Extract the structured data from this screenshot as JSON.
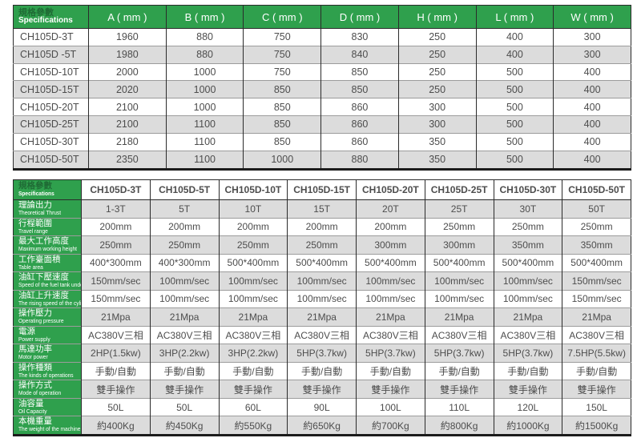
{
  "colors": {
    "header_green": "#2fa04d",
    "stripe_gray": "#dcdcdc",
    "border_dark": "#2b2b2b",
    "border_light": "#9c9c9c",
    "text_gray": "#4d4d4d",
    "header_cn_dark_green": "#1f6b35",
    "header_text_white": "#ffffff"
  },
  "table1": {
    "header": {
      "label_cn": "規格參數",
      "label_en": "Specifications",
      "columns": [
        "A ( mm )",
        "B ( mm )",
        "C ( mm )",
        "D ( mm )",
        "H ( mm )",
        "L ( mm )",
        "W ( mm )"
      ]
    },
    "rows": [
      {
        "model": "CH105D-3T",
        "values": [
          "1960",
          "880",
          "750",
          "830",
          "250",
          "400",
          "300"
        ]
      },
      {
        "model": "CH105D -5T",
        "values": [
          "1980",
          "880",
          "750",
          "840",
          "250",
          "400",
          "300"
        ]
      },
      {
        "model": "CH105D-10T",
        "values": [
          "2000",
          "1000",
          "750",
          "850",
          "250",
          "500",
          "400"
        ]
      },
      {
        "model": "CH105D-15T",
        "values": [
          "2020",
          "1000",
          "850",
          "850",
          "250",
          "500",
          "400"
        ]
      },
      {
        "model": "CH105D-20T",
        "values": [
          "2100",
          "1000",
          "850",
          "860",
          "300",
          "500",
          "400"
        ]
      },
      {
        "model": "CH105D-25T",
        "values": [
          "2100",
          "1100",
          "850",
          "860",
          "300",
          "500",
          "400"
        ]
      },
      {
        "model": "CH105D-30T",
        "values": [
          "2180",
          "1100",
          "850",
          "860",
          "350",
          "500",
          "400"
        ]
      },
      {
        "model": "CH105D-50T",
        "values": [
          "2350",
          "1100",
          "1000",
          "880",
          "350",
          "500",
          "400"
        ]
      }
    ]
  },
  "table2": {
    "header": {
      "label_cn": "規格參數",
      "label_en": "Specifications",
      "columns": [
        "CH105D-3T",
        "CH105D-5T",
        "CH105D-10T",
        "CH105D-15T",
        "CH105D-20T",
        "CH105D-25T",
        "CH105D-30T",
        "CH105D-50T"
      ]
    },
    "rows": [
      {
        "label_cn": "理論出力",
        "label_en": "Theoretical Thrust",
        "values": [
          "1-3T",
          "5T",
          "10T",
          "15T",
          "20T",
          "25T",
          "30T",
          "50T"
        ]
      },
      {
        "label_cn": "行程範圍",
        "label_en": "Travel range",
        "values": [
          "200mm",
          "200mm",
          "200mm",
          "200mm",
          "200mm",
          "250mm",
          "250mm",
          "250mm"
        ]
      },
      {
        "label_cn": "最大工作高度",
        "label_en": "Maximum working height",
        "values": [
          "250mm",
          "250mm",
          "250mm",
          "250mm",
          "300mm",
          "300mm",
          "350mm",
          "350mm"
        ]
      },
      {
        "label_cn": "工作臺面積",
        "label_en": "Table area",
        "values": [
          "400*300mm",
          "400*300mm",
          "500*400mm",
          "500*400mm",
          "500*400mm",
          "500*400mm",
          "500*400mm",
          "500*400mm"
        ]
      },
      {
        "label_cn": "油缸下壓速度",
        "label_en": "Speed of the fuel tank under pressure",
        "values": [
          "150mm/sec",
          "100mm/sec",
          "100mm/sec",
          "100mm/sec",
          "100mm/sec",
          "100mm/sec",
          "100mm/sec",
          "150mm/sec"
        ]
      },
      {
        "label_cn": "油缸上升速度",
        "label_en": "The rising speed of the cylinder",
        "values": [
          "150mm/sec",
          "100mm/sec",
          "100mm/sec",
          "100mm/sec",
          "100mm/sec",
          "100mm/sec",
          "100mm/sec",
          "150mm/sec"
        ]
      },
      {
        "label_cn": "操作壓力",
        "label_en": "Operating pressure",
        "values": [
          "21Mpa",
          "21Mpa",
          "21Mpa",
          "21Mpa",
          "21Mpa",
          "21Mpa",
          "21Mpa",
          "21Mpa"
        ]
      },
      {
        "label_cn": "電源",
        "label_en": "Power supply",
        "values": [
          "AC380V三相",
          "AC380V三相",
          "AC380V三相",
          "AC380V三相",
          "AC380V三相",
          "AC380V三相",
          "AC380V三相",
          "AC380V三相"
        ]
      },
      {
        "label_cn": "馬達功率",
        "label_en": "Motor power",
        "values": [
          "2HP(1.5kw)",
          "3HP(2.2kw)",
          "3HP(2.2kw)",
          "5HP(3.7kw)",
          "5HP(3.7kw)",
          "5HP(3.7kw)",
          "5HP(3.7kw)",
          "7.5HP(5.5kw)"
        ]
      },
      {
        "label_cn": "操作種類",
        "label_en": "The kinds of operations",
        "values": [
          "手動/自動",
          "手動/自動",
          "手動/自動",
          "手動/自動",
          "手動/自動",
          "手動/自動",
          "手動/自動",
          "手動/自動"
        ]
      },
      {
        "label_cn": "操作方式",
        "label_en": "Mode of operation",
        "values": [
          "雙手操作",
          "雙手操作",
          "雙手操作",
          "雙手操作",
          "雙手操作",
          "雙手操作",
          "雙手操作",
          "雙手操作"
        ]
      },
      {
        "label_cn": "油容量",
        "label_en": "Oil Capacity",
        "values": [
          "50L",
          "50L",
          "60L",
          "90L",
          "100L",
          "110L",
          "120L",
          "150L"
        ]
      },
      {
        "label_cn": "本機重量",
        "label_en": "The weight of the machine",
        "values": [
          "約400Kg",
          "約450Kg",
          "約550Kg",
          "約650Kg",
          "約700Kg",
          "約800Kg",
          "約1000Kg",
          "約1500Kg"
        ]
      }
    ]
  }
}
